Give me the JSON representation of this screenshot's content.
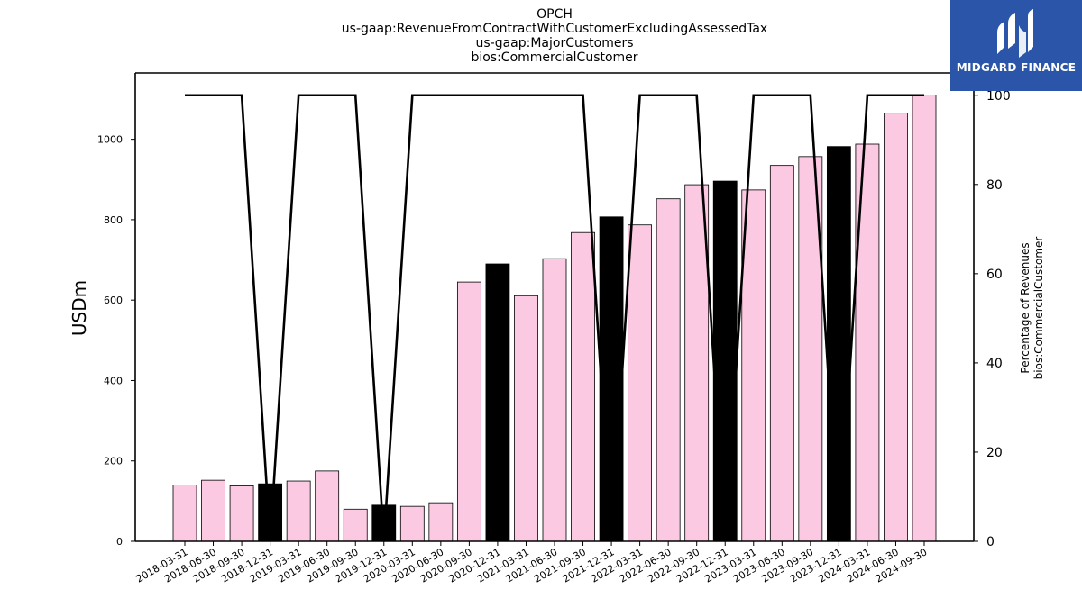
{
  "chart_data": {
    "type": "bar",
    "title_lines": [
      "OPCH",
      "us-gaap:RevenueFromContractWithCustomerExcludingAssessedTax",
      "us-gaap:MajorCustomers",
      "bios:CommercialCustomer"
    ],
    "ylabel": "USDm",
    "ylabel_right_lines": [
      "Percentage of Revenues",
      "bios:CommercialCustomer"
    ],
    "ylim": [
      0,
      1165
    ],
    "yticks": [
      0,
      200,
      400,
      600,
      800,
      1000
    ],
    "y2lim": [
      0,
      105
    ],
    "y2ticks": [
      0,
      20,
      40,
      60,
      80,
      100
    ],
    "categories": [
      "2018-03-31",
      "2018-06-30",
      "2018-09-30",
      "2018-12-31",
      "2019-03-31",
      "2019-06-30",
      "2019-09-30",
      "2019-12-31",
      "2020-03-31",
      "2020-06-30",
      "2020-09-30",
      "2020-12-31",
      "2021-03-31",
      "2021-06-30",
      "2021-09-30",
      "2021-12-31",
      "2022-03-31",
      "2022-06-30",
      "2022-09-30",
      "2022-12-31",
      "2023-03-31",
      "2023-06-30",
      "2023-09-30",
      "2023-12-31",
      "2024-03-31",
      "2024-06-30",
      "2024-09-30"
    ],
    "series": [
      {
        "type": "bar",
        "values": [
          140,
          152,
          138,
          143,
          150,
          175,
          80,
          90,
          87,
          96,
          645,
          690,
          611,
          703,
          768,
          807,
          787,
          852,
          887,
          896,
          874,
          935,
          957,
          982,
          988,
          1065,
          1110
        ],
        "annual_flags": [
          false,
          false,
          false,
          true,
          false,
          false,
          false,
          true,
          false,
          false,
          false,
          true,
          false,
          false,
          false,
          true,
          false,
          false,
          false,
          true,
          false,
          false,
          false,
          true,
          false,
          false,
          false
        ],
        "color_quarter": "#fcc9e3",
        "color_annual": "#000000"
      },
      {
        "type": "line",
        "axis": "right",
        "values": [
          100,
          100,
          100,
          0,
          100,
          100,
          100,
          0,
          100,
          100,
          100,
          100,
          100,
          100,
          100,
          0,
          100,
          100,
          100,
          0,
          100,
          100,
          100,
          0,
          100,
          100,
          100
        ],
        "color": "#000000"
      }
    ],
    "grid": false
  },
  "logo": {
    "text": "MIDGARD FINANCE",
    "background": "#2a55a8"
  }
}
